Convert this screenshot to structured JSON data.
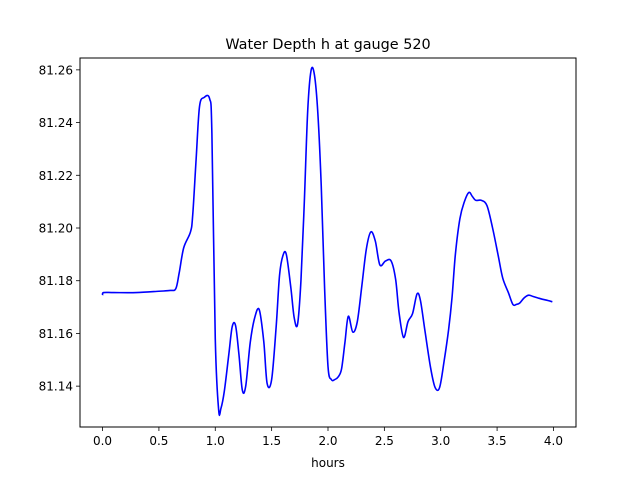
{
  "chart_data": {
    "type": "line",
    "title": "Water Depth h at gauge 520",
    "xlabel": "hours",
    "ylabel": "",
    "xlim": [
      -0.2,
      4.2
    ],
    "ylim": [
      81.1245,
      81.2645
    ],
    "xticks": [
      0.0,
      0.5,
      1.0,
      1.5,
      2.0,
      2.5,
      3.0,
      3.5,
      4.0
    ],
    "xtick_labels": [
      "0.0",
      "0.5",
      "1.0",
      "1.5",
      "2.0",
      "2.5",
      "3.0",
      "3.5",
      "4.0"
    ],
    "yticks": [
      81.14,
      81.16,
      81.18,
      81.2,
      81.22,
      81.24,
      81.26
    ],
    "ytick_labels": [
      "81.14",
      "81.16",
      "81.18",
      "81.20",
      "81.22",
      "81.24",
      "81.26"
    ],
    "grid": false,
    "series": [
      {
        "color": "#0000ff",
        "x": [
          0.0,
          0.01,
          0.1,
          0.3,
          0.5,
          0.6,
          0.65,
          0.68,
          0.72,
          0.78,
          0.8,
          0.83,
          0.86,
          0.9,
          0.95,
          0.97,
          1.0,
          1.03,
          1.05,
          1.08,
          1.12,
          1.15,
          1.18,
          1.21,
          1.24,
          1.27,
          1.31,
          1.35,
          1.39,
          1.43,
          1.46,
          1.5,
          1.54,
          1.57,
          1.6,
          1.63,
          1.67,
          1.7,
          1.73,
          1.76,
          1.79,
          1.82,
          1.85,
          1.88,
          1.91,
          1.94,
          1.97,
          2.0,
          2.03,
          2.06,
          2.09,
          2.12,
          2.15,
          2.18,
          2.22,
          2.26,
          2.3,
          2.34,
          2.38,
          2.42,
          2.46,
          2.51,
          2.56,
          2.6,
          2.63,
          2.67,
          2.71,
          2.75,
          2.79,
          2.82,
          2.86,
          2.91,
          2.95,
          2.99,
          3.03,
          3.07,
          3.1,
          3.13,
          3.17,
          3.21,
          3.25,
          3.28,
          3.31,
          3.36,
          3.41,
          3.46,
          3.51,
          3.55,
          3.6,
          3.64,
          3.67,
          3.7,
          3.74,
          3.78,
          3.82,
          3.86,
          3.9,
          3.95,
          3.99
        ],
        "y": [
          81.1745,
          81.1755,
          81.1755,
          81.1755,
          81.176,
          81.1763,
          81.177,
          81.183,
          81.1925,
          81.1985,
          81.205,
          81.226,
          81.246,
          81.2495,
          81.249,
          81.236,
          81.158,
          81.131,
          81.1315,
          81.138,
          81.152,
          81.1625,
          81.163,
          81.152,
          81.1385,
          81.14,
          81.1565,
          81.166,
          81.169,
          81.157,
          81.141,
          81.1425,
          81.1625,
          81.182,
          81.1895,
          81.19,
          81.1775,
          81.166,
          81.1635,
          81.18,
          81.21,
          81.2445,
          81.2598,
          81.258,
          81.2435,
          81.216,
          81.177,
          81.1475,
          81.1425,
          81.1425,
          81.1435,
          81.1465,
          81.1565,
          81.1665,
          81.1605,
          81.1645,
          81.178,
          81.192,
          81.1985,
          81.195,
          81.186,
          81.1875,
          81.1875,
          81.1805,
          81.168,
          81.1585,
          81.1645,
          81.1675,
          81.175,
          81.1725,
          81.161,
          81.147,
          81.1395,
          81.1395,
          81.1495,
          81.1615,
          81.1735,
          81.19,
          81.2035,
          81.21,
          81.2135,
          81.212,
          81.2105,
          81.2105,
          81.2085,
          81.2,
          81.1895,
          81.181,
          81.1755,
          81.171,
          81.171,
          81.1715,
          81.1735,
          81.1745,
          81.174,
          81.1735,
          81.173,
          81.1725,
          81.172
        ]
      }
    ]
  }
}
